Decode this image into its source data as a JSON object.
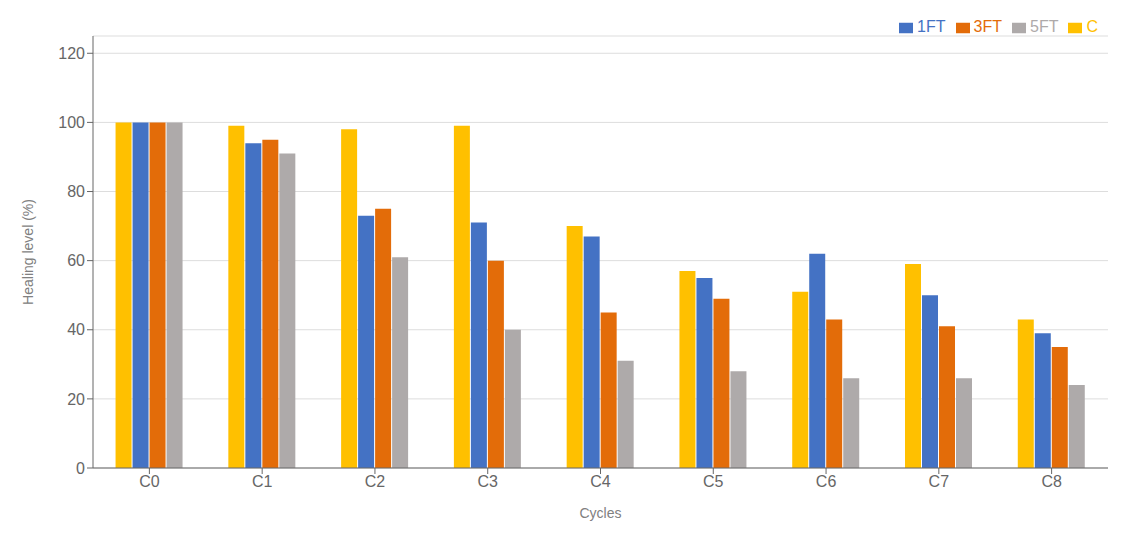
{
  "chart_data": {
    "type": "bar",
    "xlabel": "Cycles",
    "ylabel": "Healing level (%)",
    "categories": [
      "C0",
      "C1",
      "C2",
      "C3",
      "C4",
      "C5",
      "C6",
      "C7",
      "C8"
    ],
    "series": [
      {
        "name": "C",
        "color": "#FFC000",
        "values": [
          100,
          99,
          98,
          99,
          70,
          57,
          51,
          59,
          43
        ]
      },
      {
        "name": "1FT",
        "color": "#4472C4",
        "values": [
          100,
          94,
          73,
          71,
          67,
          55,
          62,
          50,
          39
        ]
      },
      {
        "name": "3FT",
        "color": "#E36C09",
        "values": [
          100,
          95,
          75,
          60,
          45,
          49,
          43,
          41,
          35
        ]
      },
      {
        "name": "5FT",
        "color": "#AEAAAA",
        "values": [
          100,
          91,
          61,
          40,
          31,
          28,
          26,
          26,
          24
        ]
      }
    ],
    "ylim": [
      0,
      125
    ],
    "yticks": [
      0,
      20,
      40,
      60,
      80,
      100,
      120
    ],
    "grid": true,
    "legend": "upper right"
  }
}
